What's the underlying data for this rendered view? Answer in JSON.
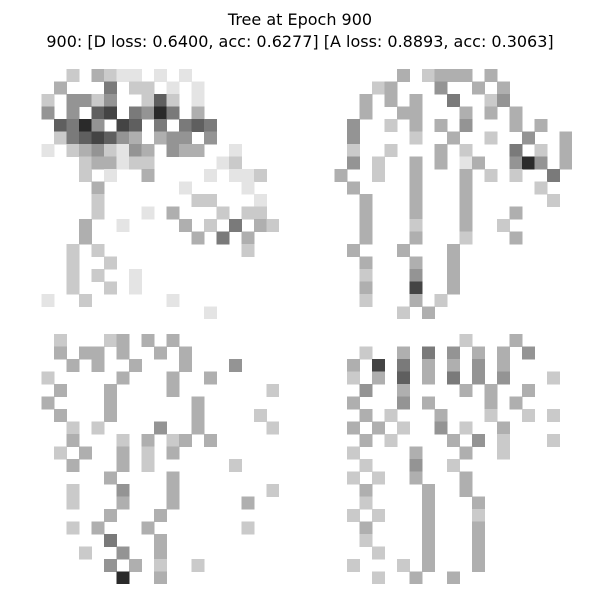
{
  "figure": {
    "title_line1": "Tree at Epoch 900",
    "title_line2": "900: [D loss: 0.6400, acc: 0.6277]  [A loss: 0.8893, acc: 0.3063]"
  },
  "samples": [
    {
      "id": "sample-1",
      "subject": "tree sketch",
      "darkness_grid": [
        "...2.3211.1.1.......",
        "..3...5.22.1.1......",
        ".2.4424..262.1......",
        ".4.4.67.5485.3......",
        "..6584.76.5.565.....",
        "..2567643.344.4.....",
        ".1.2342143.433..1...",
        "....233122.....12...",
        "....2.1..3....1.112.",
        ".....3......1....1..",
        ".....2.......22...1.",
        ".....2...1.3...2.22.",
        "....3..1....3.2.5.32",
        "....3........3.5.3..",
        "...2.2...........2..",
        "...2..2.............",
        "...2.2..1...........",
        "...2..2.1...........",
        ".1..2......1........",
        "..............1....."
      ]
    },
    {
      "id": "sample-2",
      "subject": "tree sketch",
      "darkness_grid": [
        "......3.2333.3......",
        "....23...4..3.3.....",
        "...3.3.3..5..24.....",
        "...3..33...3.3.3....",
        "..4..2.3.3.4...3.3..",
        "..4....2..3..2..4..3",
        "..2..2...3.2...5.2.3",
        "..4.2..3.3.13..484.3",
        ".3..2..3...3.2.2..5.",
        "..3....3...3.....2..",
        "...3...3...3......2.",
        "...3...3...3...3....",
        "...3...2...3..2.....",
        "...3...3...2...3....",
        "..3...3...3.........",
        "...3...3..3.........",
        "...2...4..3.........",
        "...3...7..3.........",
        "...2...3.2..........",
        "......2.3..........."
      ]
    },
    {
      "id": "sample-3",
      "subject": "tree sketch",
      "darkness_grid": [
        "..2...23.3.3........",
        "..3.33.3..3.3.......",
        "...3.3..3...3...4...",
        ".2.....3...3..3.....",
        "..3...3....3.......2",
        ".3....3......3......",
        "..3...3......3....2.",
        "...2.2....4..3.....2",
        "...3...2.3.23.3.....",
        "..2.3..3.2.3........",
        "...3...3.2......2...",
        "......3....3........",
        "...2...4...3.......2",
        "...2...3...3.....3..",
        "......3...3.........",
        "...2.3...3.......2..",
        "......5...3.........",
        "....2..4..3.........",
        "......4.3.2..2......",
        ".......8..3........."
      ]
    },
    {
      "id": "sample-4",
      "subject": "tree sketch",
      "darkness_grid": [
        "...........2...3....",
        "...2..3.5.4.3.3.4...",
        "..3.7.5.3.3.4.3.....",
        "..2.3.6.3.5.4.4...2.",
        "...4..3....3.3..3...",
        "..3...4.3....3.3....",
        "...3.2...3...2..2.2.",
        "..3.3.2..4.2..3.....",
        "...3.2....3.4.2...2.",
        "..2....3...3..2.....",
        "...2...4..2.........",
        "..2.2..3...3........",
        "...3....3..3........",
        "...2....3...3.......",
        "..2.2...3...2.......",
        "...3....3...3.......",
        "...2....3...3.......",
        "....2...3...3.......",
        "..2...2.3...3.......",
        "....2..3..3........."
      ]
    }
  ]
}
